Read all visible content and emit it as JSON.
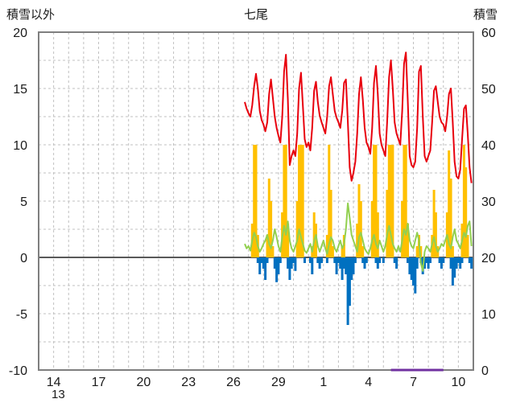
{
  "chart_data": {
    "type": "line",
    "title": "七尾",
    "x_axis": {
      "domain": [
        13,
        42
      ],
      "tick_values": [
        14,
        17,
        20,
        23,
        26,
        29,
        32,
        35,
        38,
        41
      ],
      "tick_labels": [
        "14",
        "17",
        "20",
        "23",
        "26",
        "29",
        "1",
        "4",
        "7",
        "10"
      ],
      "start_label": "13",
      "grid_interval_days": 1
    },
    "left_axis": {
      "title": "積雪以外",
      "range": [
        -10,
        20
      ],
      "ticks": [
        20,
        15,
        10,
        5,
        0,
        -5,
        -10
      ],
      "grid_step": 2.5
    },
    "right_axis": {
      "title": "積雪",
      "range": [
        0,
        60
      ],
      "ticks": [
        60,
        50,
        40,
        30,
        20,
        10,
        0
      ]
    },
    "style": {
      "grid_color": "#c0c0c0",
      "border_color": "#7f7f7f",
      "zero_line_color": "#595959",
      "text_color": "#1a1a1a",
      "background": "#ffffff"
    },
    "sample_x": {
      "start": 26.75,
      "step_days": 0.125
    },
    "series": [
      {
        "name": "sunshine",
        "axis": "left",
        "style": "bar-up",
        "color": "#ffc000",
        "values": [
          0,
          0,
          0,
          0,
          3,
          10,
          10,
          2,
          0,
          0,
          0,
          0,
          2,
          7,
          5,
          1,
          0,
          0,
          0,
          0,
          4,
          10,
          10,
          3,
          0,
          0,
          0,
          0,
          5,
          10,
          10,
          10,
          0,
          0,
          0,
          0,
          1,
          4,
          3,
          0,
          0,
          0,
          0,
          0,
          2,
          10,
          6,
          1,
          0,
          0,
          0,
          0,
          1,
          2,
          0,
          0,
          0,
          0,
          0,
          0,
          3,
          6.5,
          5,
          1,
          0,
          0,
          0,
          0,
          5,
          10,
          10,
          4,
          0,
          0,
          0,
          0,
          6,
          10,
          10,
          10,
          0,
          0,
          0,
          0,
          5,
          10,
          10,
          3,
          0,
          0,
          0,
          0,
          1,
          2,
          1,
          0,
          0,
          0,
          0,
          0,
          2,
          6,
          4,
          1,
          0,
          0,
          0,
          0,
          4,
          9.5,
          7,
          1,
          0,
          0,
          0,
          0,
          3,
          10,
          8,
          2,
          0,
          0
        ]
      },
      {
        "name": "precipitation",
        "axis": "left",
        "style": "bar-down",
        "color": "#0070c0",
        "values": [
          0,
          0,
          0,
          0,
          0,
          0,
          0,
          -0.5,
          -1.5,
          -0.5,
          -1.0,
          -2.0,
          -0.5,
          0,
          0,
          0,
          -1.0,
          -2.2,
          -1.5,
          -0.5,
          0,
          0,
          0,
          -1.0,
          -2.0,
          -1.0,
          -0.5,
          -1.2,
          0,
          0,
          0,
          0,
          -0.5,
          0,
          0,
          -0.5,
          -1.5,
          0,
          0,
          -0.5,
          -1.0,
          -0.5,
          0,
          0,
          -0.5,
          0,
          0,
          0,
          -0.5,
          -1.5,
          -0.5,
          -1.0,
          -2.0,
          -1.0,
          -1.5,
          -6.0,
          -4.3,
          -2.0,
          -1.5,
          -0.5,
          0,
          0,
          0,
          -0.5,
          -1.0,
          -0.5,
          0,
          0,
          0,
          0,
          -0.5,
          -1.0,
          -0.5,
          0,
          -0.5,
          0,
          0,
          0,
          0,
          0,
          -0.5,
          -1.0,
          0,
          0,
          0,
          0,
          0,
          -0.5,
          -1.5,
          -2.0,
          -2.5,
          -3.2,
          -1.0,
          0,
          -0.5,
          -1.5,
          -1.0,
          -0.5,
          -1.0,
          -0.5,
          0,
          0,
          0,
          0,
          -0.5,
          -1.0,
          -0.5,
          0,
          0,
          0,
          -1.0,
          -2.5,
          -1.8,
          -1.0,
          -0.5,
          -1.0,
          -0.5,
          0,
          0,
          0,
          -0.5,
          -1.0
        ]
      },
      {
        "name": "temperature",
        "axis": "left",
        "style": "line",
        "color": "#e8000d",
        "values": [
          13.8,
          13.2,
          12.8,
          12.5,
          13.5,
          15.2,
          16.3,
          15.0,
          13.0,
          12.2,
          11.8,
          11.2,
          12.0,
          14.5,
          15.8,
          14.2,
          12.5,
          11.5,
          10.8,
          10.2,
          12.5,
          16.5,
          18.0,
          14.0,
          8.2,
          9.0,
          9.5,
          9.0,
          11.0,
          15.0,
          16.4,
          13.5,
          10.5,
          9.8,
          10.2,
          9.5,
          11.5,
          14.8,
          15.6,
          13.8,
          12.6,
          12.0,
          11.5,
          11.0,
          12.5,
          15.2,
          16.0,
          14.5,
          13.0,
          12.4,
          12.0,
          11.5,
          13.0,
          15.5,
          15.8,
          12.0,
          8.0,
          6.8,
          7.5,
          8.5,
          11.0,
          14.5,
          16.0,
          14.0,
          11.5,
          10.2,
          9.8,
          9.2,
          11.5,
          15.5,
          17.0,
          14.5,
          11.0,
          10.0,
          9.5,
          9.0,
          12.0,
          16.0,
          17.5,
          15.0,
          12.0,
          11.0,
          10.5,
          10.0,
          13.0,
          17.2,
          18.2,
          14.0,
          9.0,
          8.2,
          8.0,
          8.5,
          11.5,
          16.5,
          17.0,
          12.5,
          9.0,
          8.5,
          9.0,
          9.5,
          12.0,
          14.8,
          15.2,
          13.8,
          12.5,
          12.0,
          11.8,
          11.2,
          12.5,
          14.5,
          15.0,
          12.0,
          8.5,
          7.2,
          7.0,
          7.8,
          10.5,
          13.2,
          13.5,
          11.0,
          8.0,
          6.6
        ]
      },
      {
        "name": "wind",
        "axis": "left",
        "style": "line",
        "color": "#92d050",
        "values": [
          1.2,
          0.8,
          1.0,
          0.6,
          1.5,
          2.2,
          1.8,
          1.0,
          0.5,
          0.8,
          1.2,
          1.5,
          2.0,
          1.2,
          0.8,
          1.5,
          2.5,
          1.8,
          1.0,
          0.5,
          1.8,
          2.8,
          2.0,
          3.2,
          1.5,
          0.8,
          0.5,
          1.0,
          1.5,
          2.5,
          1.8,
          1.2,
          0.6,
          0.4,
          0.8,
          1.2,
          0.5,
          1.5,
          2.0,
          1.0,
          0.5,
          1.0,
          1.5,
          0.8,
          0.3,
          1.2,
          1.8,
          1.5,
          0.8,
          0.5,
          1.0,
          1.5,
          0.8,
          1.2,
          2.5,
          4.8,
          3.5,
          2.0,
          1.5,
          1.0,
          0.5,
          1.8,
          2.2,
          1.5,
          0.8,
          0.5,
          0.3,
          0.8,
          1.5,
          2.0,
          1.2,
          0.8,
          1.5,
          1.0,
          0.5,
          1.0,
          2.0,
          2.8,
          2.0,
          1.2,
          0.8,
          0.5,
          1.0,
          0.5,
          1.5,
          2.5,
          2.0,
          3.0,
          1.5,
          1.0,
          0.8,
          1.5,
          2.2,
          1.5,
          -0.5,
          -1.2,
          0.5,
          1.0,
          0.8,
          0.5,
          1.2,
          1.8,
          1.0,
          0.5,
          0.8,
          1.2,
          1.0,
          1.5,
          2.0,
          1.2,
          0.8,
          1.8,
          2.5,
          1.5,
          1.2,
          0.8,
          1.5,
          2.2,
          1.8,
          2.8,
          3.2,
          1.0
        ]
      },
      {
        "name": "snow_depth",
        "axis": "right",
        "style": "line",
        "color": "#7030a0",
        "points": [
          [
            36.5,
            0
          ],
          [
            40.0,
            0
          ]
        ]
      }
    ]
  }
}
